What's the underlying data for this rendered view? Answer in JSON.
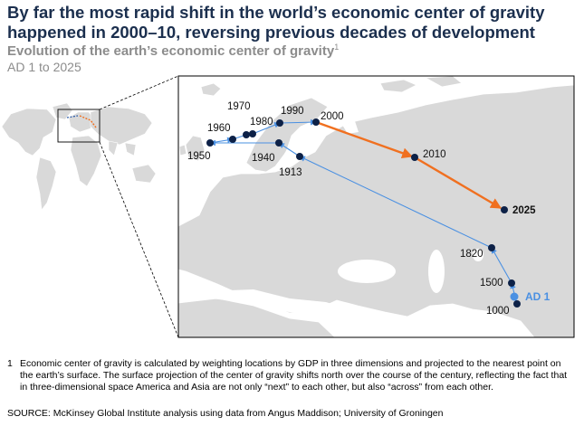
{
  "headline": "By far the most rapid shift in the world’s economic center of gravity happened in 2000–10, reversing previous decades of development",
  "subtitle": "Evolution of the earth’s economic center of gravity",
  "subtitle_note": "1",
  "date_range": "AD 1 to 2025",
  "points": [
    {
      "label": "AD 1",
      "style": "ad"
    },
    {
      "label": "1000",
      "style": "normal"
    },
    {
      "label": "1500",
      "style": "normal"
    },
    {
      "label": "1820",
      "style": "normal"
    },
    {
      "label": "1913",
      "style": "normal"
    },
    {
      "label": "1940",
      "style": "normal"
    },
    {
      "label": "1950",
      "style": "normal"
    },
    {
      "label": "1960",
      "style": "normal"
    },
    {
      "label": "1970",
      "style": "normal"
    },
    {
      "label": "1980",
      "style": "normal"
    },
    {
      "label": "1990",
      "style": "normal"
    },
    {
      "label": "2000",
      "style": "normal"
    },
    {
      "label": "2010",
      "style": "normal"
    },
    {
      "label": "2025",
      "style": "bold"
    }
  ],
  "colors": {
    "early_path": "#4a90e2",
    "recent_path": "#f07020",
    "dot": "#0d2147",
    "ad_dot": "#4a90e2",
    "land": "#d9d9d9",
    "sea": "#ffffff",
    "headline": "#1b2f4e"
  },
  "footnote": {
    "number": "1",
    "text": "Economic center of gravity is calculated by weighting locations by GDP in three dimensions and projected to the nearest point on the earth’s surface. The surface projection of the center of gravity shifts north over the course of the century, reflecting the fact that in three-dimensional space America and Asia are not only “next” to each other, but also “across” from each other."
  },
  "source": "SOURCE: McKinsey Global Institute analysis using data from Angus Maddison; University of Groningen"
}
